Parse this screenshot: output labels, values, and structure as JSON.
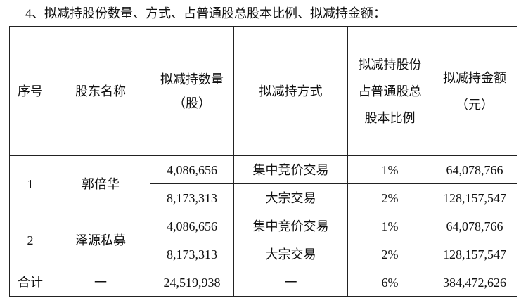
{
  "heading": "4、拟减持股份数量、方式、占普通股总股本比例、拟减持金额：",
  "columns": [
    {
      "lines": [
        "序号"
      ]
    },
    {
      "lines": [
        "股东名称"
      ]
    },
    {
      "lines": [
        "拟减持数量",
        "（股）"
      ]
    },
    {
      "lines": [
        "拟减持方式"
      ]
    },
    {
      "lines": [
        "拟减持股份",
        "占普通股总",
        "股本比例"
      ]
    },
    {
      "lines": [
        "拟减持金额",
        "（元）"
      ]
    }
  ],
  "shareholders": [
    {
      "index": "1",
      "name": "郭倍华",
      "rows": [
        {
          "quantity": "4,086,656",
          "method": "集中竞价交易",
          "ratio": "1%",
          "amount": "64,078,766"
        },
        {
          "quantity": "8,173,313",
          "method": "大宗交易",
          "ratio": "2%",
          "amount": "128,157,547"
        }
      ]
    },
    {
      "index": "2",
      "name": "泽源私募",
      "rows": [
        {
          "quantity": "4,086,656",
          "method": "集中竞价交易",
          "ratio": "1%",
          "amount": "64,078,766"
        },
        {
          "quantity": "8,173,313",
          "method": "大宗交易",
          "ratio": "2%",
          "amount": "128,157,547"
        }
      ]
    }
  ],
  "total": {
    "label": "合计",
    "name": "一",
    "quantity": "24,519,938",
    "method": "一",
    "ratio": "6%",
    "amount": "384,472,626"
  }
}
